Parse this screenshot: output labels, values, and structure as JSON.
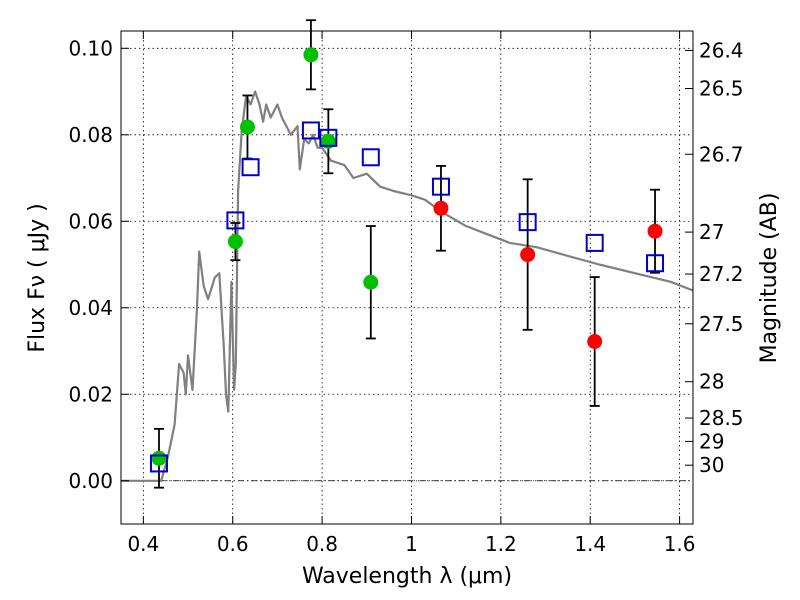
{
  "chart_data": {
    "type": "scatter",
    "xlabel": "Wavelength  λ (μm)",
    "ylabel": "Flux  Fν  ( μJy )",
    "y2label": "Magnitude (AB)",
    "xlim": [
      0.35,
      1.63
    ],
    "ylim": [
      -0.01,
      0.104
    ],
    "xticks": [
      0.4,
      0.6,
      0.8,
      1.0,
      1.2,
      1.4,
      1.6
    ],
    "xtick_labels": [
      "0.4",
      "0.6",
      "0.8",
      "1",
      "1.2",
      "1.4",
      "1.6"
    ],
    "yticks": [
      0.0,
      0.02,
      0.04,
      0.06,
      0.08,
      0.1
    ],
    "ytick_labels": [
      "0.00",
      "0.02",
      "0.04",
      "0.06",
      "0.08",
      "0.10"
    ],
    "y2ticks": [
      {
        "label": "26.4",
        "flux": 0.0995
      },
      {
        "label": "26.5",
        "flux": 0.0907
      },
      {
        "label": "26.7",
        "flux": 0.0755
      },
      {
        "label": "27",
        "flux": 0.0575
      },
      {
        "label": "27.2",
        "flux": 0.0478
      },
      {
        "label": "27.5",
        "flux": 0.0363
      },
      {
        "label": "28",
        "flux": 0.0229
      },
      {
        "label": "28.5",
        "flux": 0.0145
      },
      {
        "label": "29",
        "flux": 0.0091
      },
      {
        "label": "30",
        "flux": 0.0036
      }
    ],
    "grid": true,
    "series": [
      {
        "marker": "circle",
        "color": "#00c000",
        "points": [
          {
            "x": 0.435,
            "y": 0.0052,
            "err": 0.0068
          },
          {
            "x": 0.606,
            "y": 0.0553,
            "err": 0.0043
          },
          {
            "x": 0.633,
            "y": 0.0818,
            "err": 0.0073
          },
          {
            "x": 0.775,
            "y": 0.0985,
            "err": 0.008
          },
          {
            "x": 0.814,
            "y": 0.0785,
            "err": 0.0074
          },
          {
            "x": 0.909,
            "y": 0.0459,
            "err": 0.013
          }
        ]
      },
      {
        "marker": "circle",
        "color": "#ff0000",
        "points": [
          {
            "x": 1.066,
            "y": 0.063,
            "err": 0.0098
          },
          {
            "x": 1.26,
            "y": 0.0523,
            "err": 0.0174
          },
          {
            "x": 1.41,
            "y": 0.0322,
            "err": 0.0149
          },
          {
            "x": 1.545,
            "y": 0.0577,
            "err": 0.0096
          }
        ]
      },
      {
        "marker": "open-square",
        "color": "#0000cc",
        "points": [
          {
            "x": 0.435,
            "y": 0.004
          },
          {
            "x": 0.606,
            "y": 0.0602
          },
          {
            "x": 0.64,
            "y": 0.0725
          },
          {
            "x": 0.775,
            "y": 0.081
          },
          {
            "x": 0.814,
            "y": 0.0793
          },
          {
            "x": 0.909,
            "y": 0.0748
          },
          {
            "x": 1.066,
            "y": 0.068
          },
          {
            "x": 1.26,
            "y": 0.0598
          },
          {
            "x": 1.41,
            "y": 0.055
          },
          {
            "x": 1.545,
            "y": 0.0503
          }
        ]
      },
      {
        "type": "line",
        "color": "#808080",
        "x": [
          0.35,
          0.44,
          0.455,
          0.47,
          0.48,
          0.49,
          0.495,
          0.5,
          0.51,
          0.52,
          0.525,
          0.535,
          0.545,
          0.56,
          0.57,
          0.58,
          0.585,
          0.59,
          0.597,
          0.603,
          0.607,
          0.612,
          0.62,
          0.63,
          0.64,
          0.65,
          0.66,
          0.668,
          0.675,
          0.685,
          0.7,
          0.71,
          0.73,
          0.745,
          0.75,
          0.76,
          0.77,
          0.78,
          0.79,
          0.8,
          0.82,
          0.85,
          0.87,
          0.9,
          0.93,
          0.96,
          1.0,
          1.03,
          1.07,
          1.12,
          1.17,
          1.22,
          1.28,
          1.35,
          1.42,
          1.5,
          1.58,
          1.63
        ],
        "y": [
          0.0,
          0.0,
          0.0055,
          0.013,
          0.027,
          0.025,
          0.02,
          0.029,
          0.021,
          0.04,
          0.053,
          0.045,
          0.042,
          0.047,
          0.048,
          0.031,
          0.02,
          0.016,
          0.046,
          0.021,
          0.027,
          0.067,
          0.081,
          0.089,
          0.087,
          0.09,
          0.087,
          0.083,
          0.087,
          0.084,
          0.087,
          0.084,
          0.08,
          0.082,
          0.072,
          0.079,
          0.078,
          0.08,
          0.077,
          0.077,
          0.074,
          0.073,
          0.07,
          0.071,
          0.068,
          0.067,
          0.066,
          0.065,
          0.062,
          0.059,
          0.057,
          0.055,
          0.054,
          0.052,
          0.05,
          0.048,
          0.046,
          0.044
        ]
      }
    ]
  }
}
